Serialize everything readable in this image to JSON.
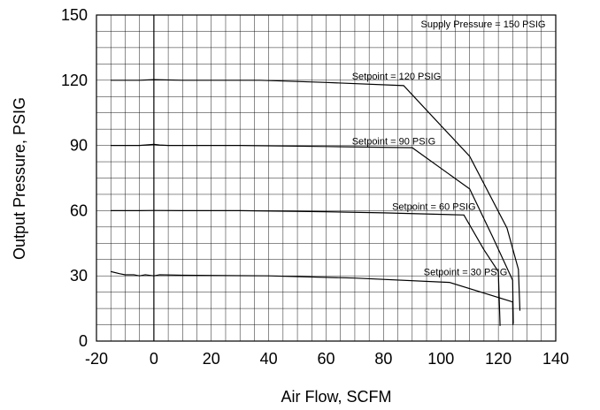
{
  "chart_data": {
    "type": "line",
    "title": "",
    "xlabel": "Air Flow, SCFM",
    "ylabel": "Output Pressure, PSIG",
    "xlim": [
      -20,
      140
    ],
    "ylim": [
      0,
      150
    ],
    "x_ticks": [
      "-20",
      "0",
      "20",
      "40",
      "60",
      "80",
      "100",
      "120",
      "140"
    ],
    "y_ticks": [
      "0",
      "30",
      "60",
      "90",
      "120",
      "150"
    ],
    "grid": true,
    "annotations": [
      {
        "text": "Supply Pressure = 150 PSIG",
        "x": 93,
        "y": 146
      },
      {
        "text": "Setpoint = 120 PSIG",
        "x": 69,
        "y": 122
      },
      {
        "text": "Setpoint = 90 PSIG",
        "x": 69,
        "y": 92
      },
      {
        "text": "Setpoint = 60 PSIG",
        "x": 83,
        "y": 62
      },
      {
        "text": "Setpoint = 30 PSIG",
        "x": 94,
        "y": 32
      }
    ],
    "series": [
      {
        "x": [
          -15,
          -5,
          0,
          10,
          20,
          37,
          60,
          87,
          110,
          123,
          127,
          127.5
        ],
        "y": [
          120,
          120,
          120.3,
          120,
          120,
          120,
          119,
          117.5,
          85,
          52,
          33,
          14
        ]
      },
      {
        "x": [
          -15,
          -5,
          0,
          2,
          5,
          10,
          30,
          60,
          90,
          110,
          118,
          125,
          125.2
        ],
        "y": [
          90,
          90,
          90.5,
          90.2,
          90,
          90,
          90,
          89.5,
          89,
          70,
          48,
          28,
          8
        ]
      },
      {
        "x": [
          -15,
          -5,
          0,
          10,
          30,
          60,
          80,
          108,
          115,
          120,
          120.6
        ],
        "y": [
          60,
          60,
          60.1,
          60,
          60,
          59.5,
          59,
          58,
          42,
          32,
          7
        ]
      },
      {
        "x": [
          -15,
          -12,
          -10,
          -7,
          -5,
          -3,
          0,
          2,
          10,
          40,
          70,
          103,
          125,
          125.1
        ],
        "y": [
          32,
          31,
          30.5,
          30.5,
          30,
          30.5,
          30,
          30.5,
          30.3,
          30,
          29,
          27,
          18,
          7.5
        ]
      }
    ]
  }
}
